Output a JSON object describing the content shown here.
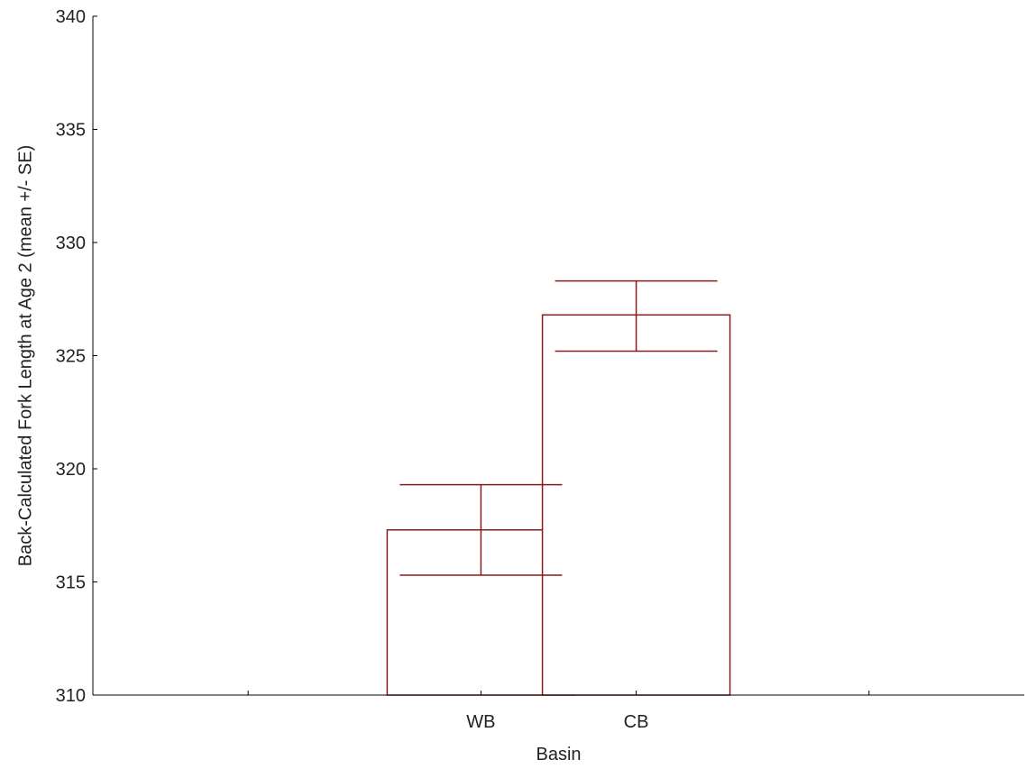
{
  "chart_data": {
    "type": "bar",
    "categories": [
      "WB",
      "CB"
    ],
    "values": [
      317.3,
      326.8
    ],
    "error_bars": [
      {
        "lower": 315.3,
        "upper": 319.3
      },
      {
        "lower": 325.2,
        "upper": 328.3
      }
    ],
    "xlabel": "Basin",
    "ylabel": "Back-Calculated Fork Length at Age 2 (mean +/- SE)",
    "ylim": [
      310,
      340
    ],
    "yticks": [
      310,
      315,
      320,
      325,
      330,
      335,
      340
    ],
    "ytick_labels": [
      "310",
      "315",
      "320",
      "325",
      "330",
      "335",
      "340"
    ],
    "grid": false,
    "legend": "none",
    "colors": {
      "bar_stroke": "#8b1a1a",
      "bar_fill": "#ffffff",
      "axis": "#000000",
      "text": "#222222"
    }
  }
}
